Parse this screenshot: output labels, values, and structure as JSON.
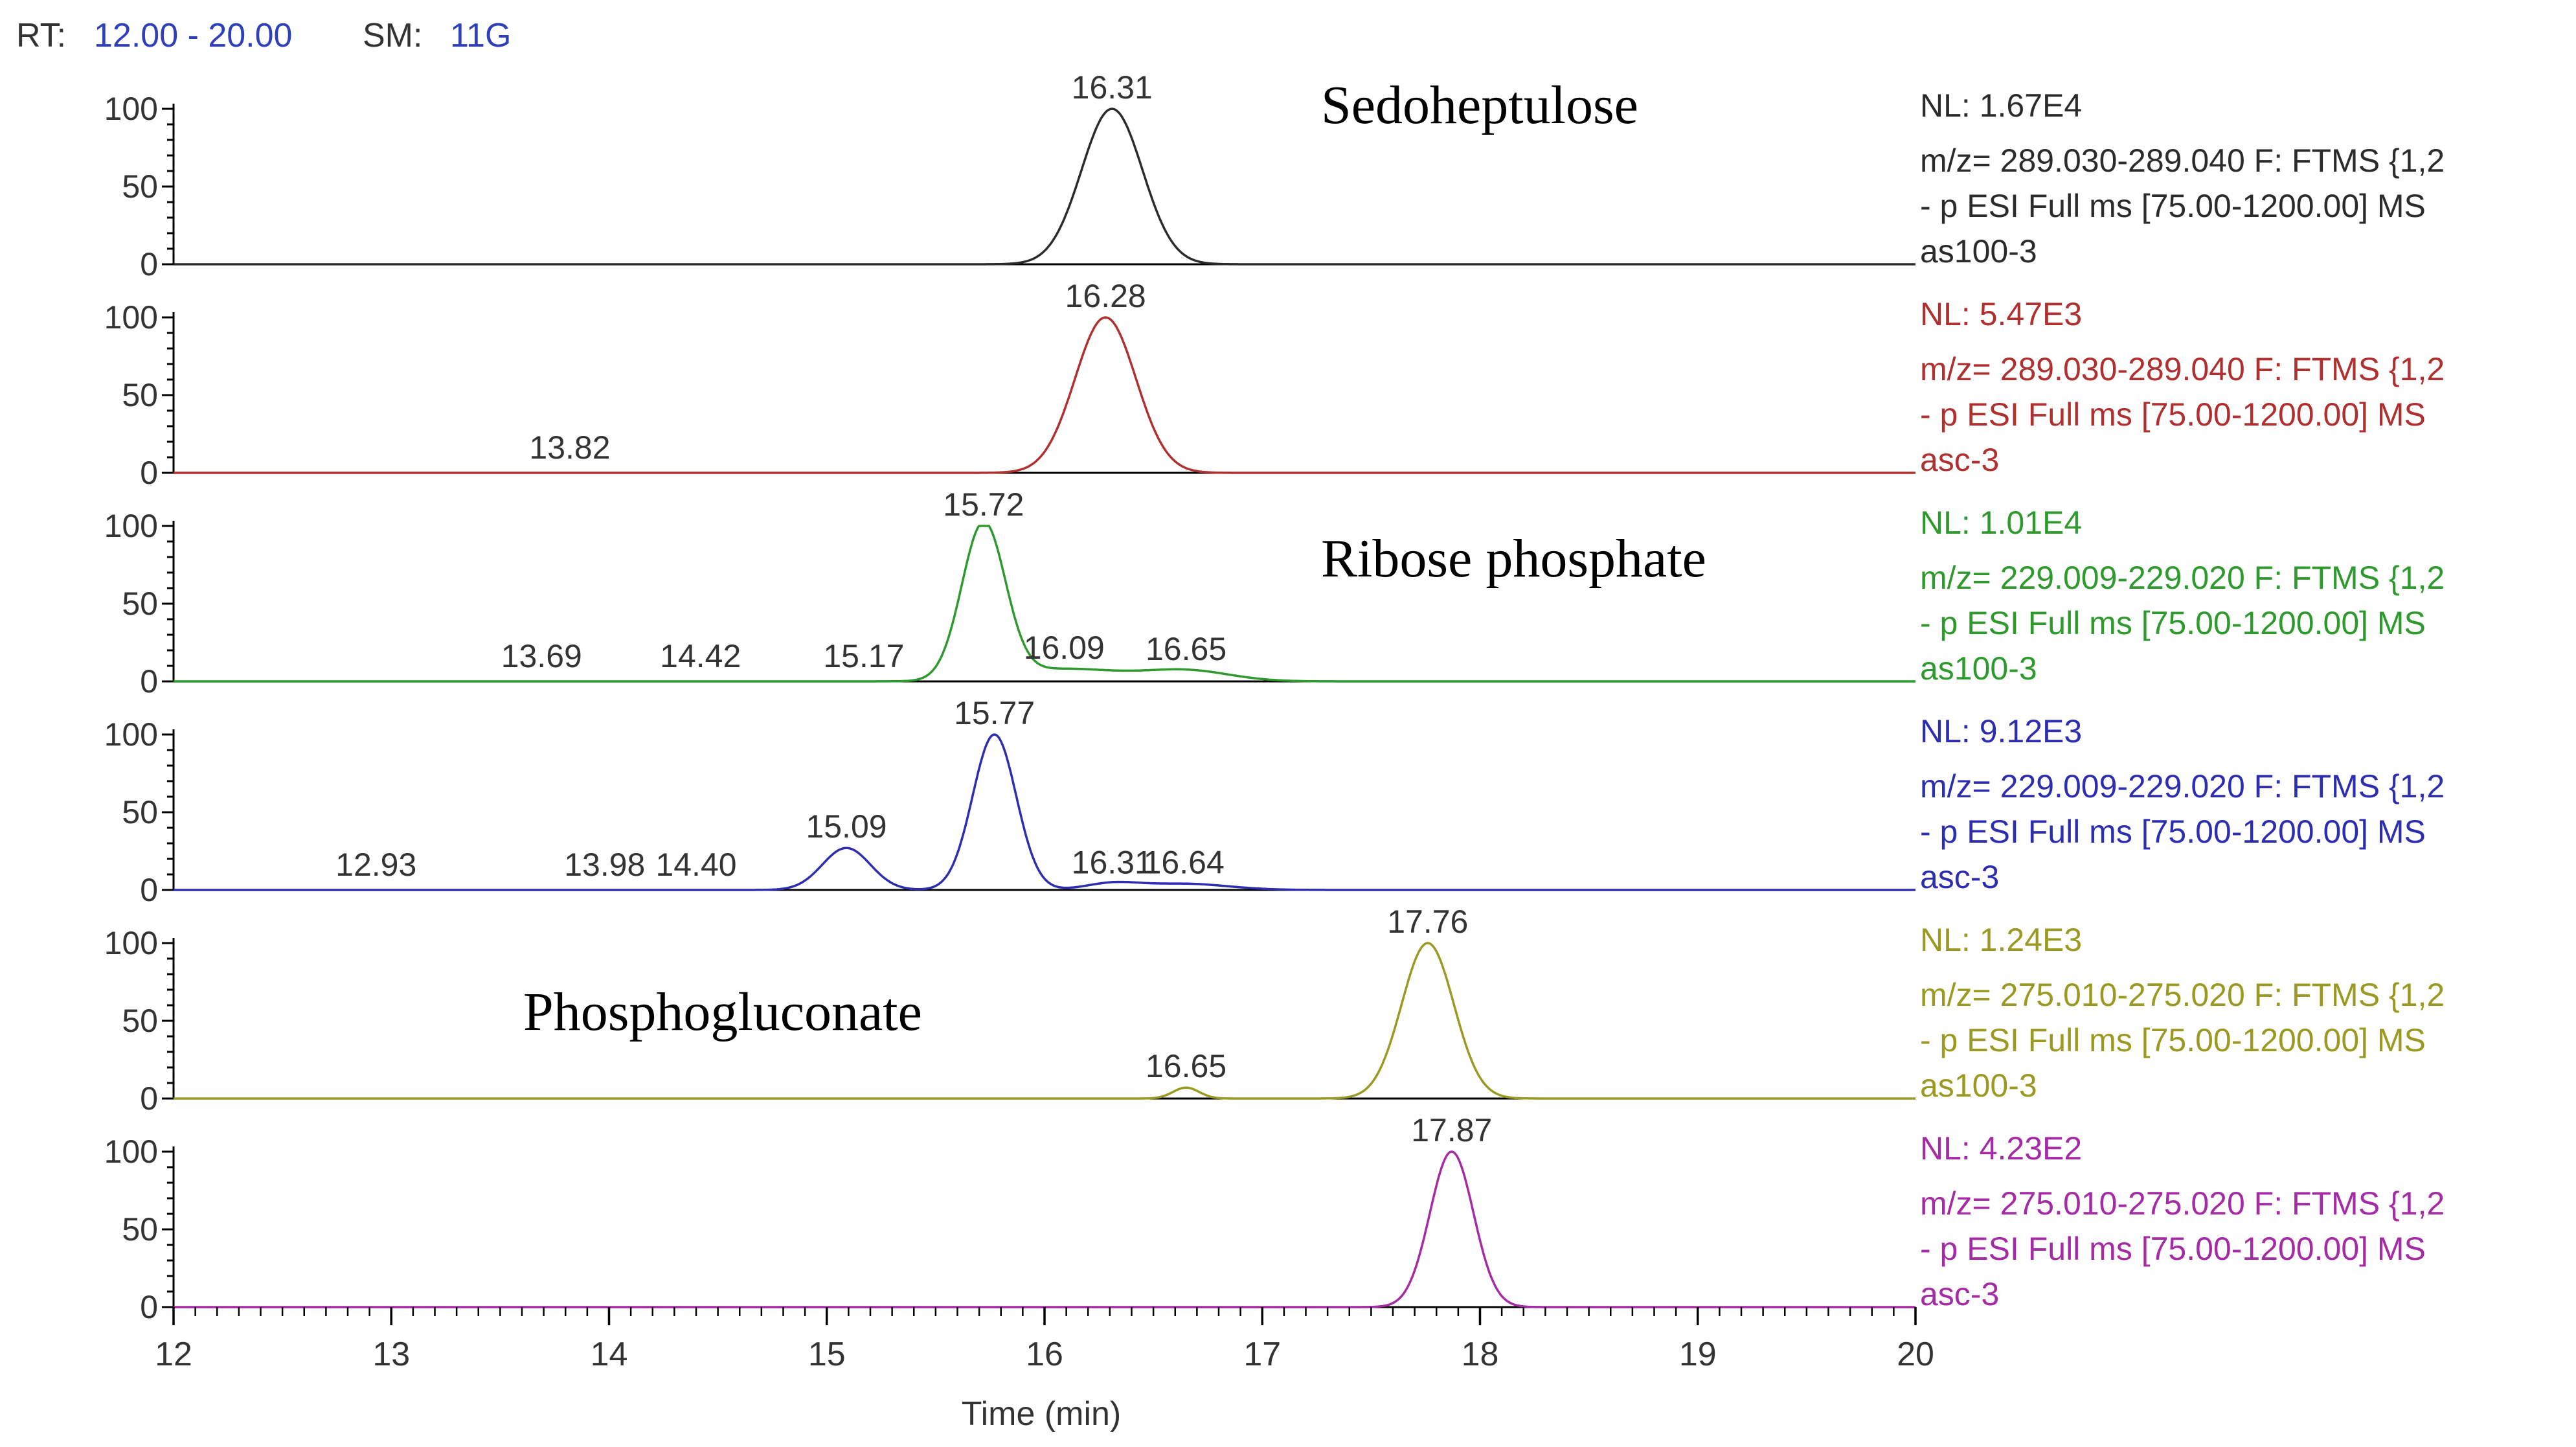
{
  "header": {
    "rt_label": "RT:",
    "rt_range": "12.00 - 20.00",
    "sm_label": "SM:",
    "sm_value": "11G"
  },
  "colors": {
    "axis": "#000000",
    "header_value": "#2f3fb8",
    "traces": [
      "#2b2b2b",
      "#b03030",
      "#2e9a2e",
      "#2d2db0",
      "#9a9a22",
      "#a52aa5"
    ]
  },
  "chart_data": {
    "type": "line",
    "xlabel": "Time (min)",
    "xlim": [
      12,
      20
    ],
    "x_ticks": [
      "12",
      "13",
      "14",
      "15",
      "16",
      "17",
      "18",
      "19",
      "20"
    ],
    "y_ticks": [
      "0",
      "50",
      "100"
    ],
    "ylim": [
      0,
      100
    ],
    "annotations": [
      "Sedoheptulose",
      "Ribose phosphate",
      "Phosphogluconate"
    ],
    "panels": [
      {
        "name": "Sedoheptulose as100-3",
        "color": "#2b2b2b",
        "nl": "NL: 1.67E4",
        "filter_line1": "m/z= 289.030-289.040 F: FTMS {1,2",
        "filter_line2": "- p ESI Full ms [75.00-1200.00]  MS",
        "sample": "as100-3",
        "annotation": "Sedoheptulose",
        "peaks": [
          {
            "rt": 16.31,
            "height": 100,
            "width": 0.14,
            "label": "16.31"
          }
        ],
        "minor_labels": []
      },
      {
        "name": "Sedoheptulose asc-3",
        "color": "#b03030",
        "nl": "NL: 5.47E3",
        "filter_line1": "m/z= 289.030-289.040 F: FTMS {1,2",
        "filter_line2": "- p ESI Full ms [75.00-1200.00]  MS",
        "sample": "asc-3",
        "annotation": "",
        "peaks": [
          {
            "rt": 16.28,
            "height": 100,
            "width": 0.14,
            "label": "16.28"
          }
        ],
        "minor_labels": [
          {
            "rt": 13.82,
            "label": "13.82"
          }
        ]
      },
      {
        "name": "Ribose phosphate as100-3",
        "color": "#2e9a2e",
        "nl": "NL: 1.01E4",
        "filter_line1": "m/z= 229.009-229.020 F: FTMS {1,2",
        "filter_line2": "- p ESI Full ms [75.00-1200.00]  MS",
        "sample": "as100-3",
        "annotation": "Ribose phosphate",
        "peaks": [
          {
            "rt": 15.72,
            "height": 100,
            "width": 0.1,
            "label": "15.72"
          },
          {
            "rt": 16.09,
            "height": 8,
            "width": 0.25,
            "label": "16.09"
          },
          {
            "rt": 16.65,
            "height": 7,
            "width": 0.2,
            "label": "16.65"
          }
        ],
        "minor_labels": [
          {
            "rt": 13.69,
            "label": "13.69"
          },
          {
            "rt": 14.42,
            "label": "14.42"
          },
          {
            "rt": 15.17,
            "label": "15.17"
          }
        ]
      },
      {
        "name": "Ribose phosphate asc-3",
        "color": "#2d2db0",
        "nl": "NL: 9.12E3",
        "filter_line1": "m/z= 229.009-229.020 F: FTMS {1,2",
        "filter_line2": "- p ESI Full ms [75.00-1200.00]  MS",
        "sample": "asc-3",
        "annotation": "",
        "peaks": [
          {
            "rt": 15.09,
            "height": 27,
            "width": 0.11,
            "label": "15.09"
          },
          {
            "rt": 15.77,
            "height": 100,
            "width": 0.1,
            "label": "15.77"
          },
          {
            "rt": 16.31,
            "height": 4,
            "width": 0.12,
            "label": "16.31"
          },
          {
            "rt": 16.64,
            "height": 4,
            "width": 0.2,
            "label": "16.64"
          }
        ],
        "minor_labels": [
          {
            "rt": 12.93,
            "label": "12.93"
          },
          {
            "rt": 13.98,
            "label": "13.98"
          },
          {
            "rt": 14.4,
            "label": "14.40"
          }
        ]
      },
      {
        "name": "Phosphogluconate as100-3",
        "color": "#9a9a22",
        "nl": "NL: 1.24E3",
        "filter_line1": "m/z= 275.010-275.020 F: FTMS {1,2",
        "filter_line2": "- p ESI Full ms [75.00-1200.00]  MS",
        "sample": "as100-3",
        "annotation": "Phosphogluconate",
        "peaks": [
          {
            "rt": 16.65,
            "height": 7,
            "width": 0.06,
            "label": "16.65"
          },
          {
            "rt": 17.76,
            "height": 100,
            "width": 0.12,
            "label": "17.76"
          }
        ],
        "minor_labels": []
      },
      {
        "name": "Phosphogluconate asc-3",
        "color": "#a52aa5",
        "nl": "NL: 4.23E2",
        "filter_line1": "m/z= 275.010-275.020 F: FTMS {1,2",
        "filter_line2": "- p ESI Full ms [75.00-1200.00]  MS",
        "sample": "asc-3",
        "annotation": "",
        "peaks": [
          {
            "rt": 17.87,
            "height": 100,
            "width": 0.1,
            "label": "17.87"
          }
        ],
        "minor_labels": []
      }
    ]
  }
}
